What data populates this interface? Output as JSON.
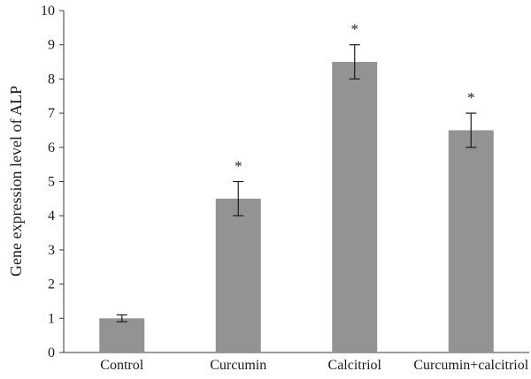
{
  "chart_data": {
    "type": "bar",
    "title": "",
    "xlabel": "",
    "ylabel": "Gene expression level of ALP",
    "categories": [
      "Control",
      "Curcumin",
      "Calcitriol",
      "Curcumin+calcitriol"
    ],
    "values": [
      1.0,
      4.5,
      8.5,
      6.5
    ],
    "errors": [
      0.1,
      0.5,
      0.5,
      0.5
    ],
    "annotations": [
      "",
      "*",
      "*",
      "*"
    ],
    "ylim": [
      0,
      10
    ],
    "yticks": [
      0,
      1,
      2,
      3,
      4,
      5,
      6,
      7,
      8,
      9,
      10
    ],
    "grid": false,
    "bar_color": "#939393",
    "axis_color": "#3a3a3a"
  }
}
